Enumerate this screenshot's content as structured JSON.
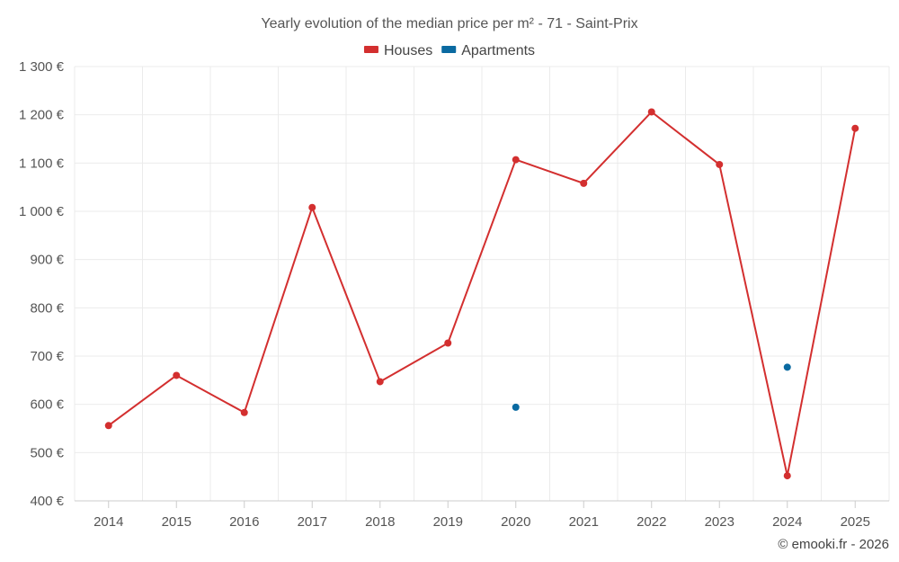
{
  "chart_data": {
    "type": "line",
    "title": "Yearly evolution of the median price per m² - 71 - Saint-Prix",
    "categories": [
      "2014",
      "2015",
      "2016",
      "2017",
      "2018",
      "2019",
      "2020",
      "2021",
      "2022",
      "2023",
      "2024",
      "2025"
    ],
    "series": [
      {
        "name": "Houses",
        "color": "#d32f2f",
        "values": [
          556,
          660,
          583,
          1008,
          647,
          727,
          1107,
          1058,
          1206,
          1097,
          452,
          1172
        ]
      },
      {
        "name": "Apartments",
        "color": "#0a6aa1",
        "values": [
          null,
          null,
          null,
          null,
          null,
          null,
          594,
          null,
          null,
          null,
          677,
          null
        ]
      }
    ],
    "ylim": [
      400,
      1300
    ],
    "yticks": [
      400,
      500,
      600,
      700,
      800,
      900,
      1000,
      1100,
      1200,
      1300
    ],
    "ytick_labels": [
      "400 €",
      "500 €",
      "600 €",
      "700 €",
      "800 €",
      "900 €",
      "1 000 €",
      "1 100 €",
      "1 200 €",
      "1 300 €"
    ],
    "xlabel": "",
    "ylabel": "",
    "grid": true,
    "legend_position": "top-center"
  },
  "credit": "© emooki.fr - 2026"
}
